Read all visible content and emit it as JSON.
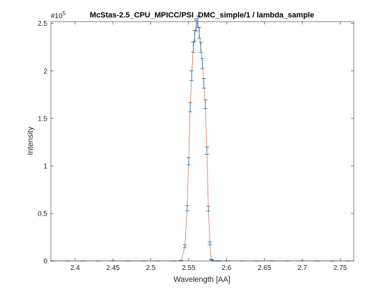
{
  "chart_data": {
    "type": "line",
    "title": "McStas-2.5_CPU_MPICC/PSI_DMC_simple/1 / lambda_sample",
    "xlabel": "Wavelength [AA]",
    "ylabel": "Intensity",
    "y_exponent_base": "#10",
    "y_exponent_power": "5",
    "xlim": [
      2.368,
      2.768
    ],
    "ylim": [
      0,
      252000
    ],
    "x_tick_values": [
      2.4,
      2.45,
      2.5,
      2.55,
      2.6,
      2.65,
      2.7,
      2.75
    ],
    "x_tick_labels": [
      "2.4",
      "2.45",
      "2.5",
      "2.55",
      "2.6",
      "2.65",
      "2.7",
      "2.75"
    ],
    "y_tick_values": [
      0,
      50000,
      100000,
      150000,
      200000,
      250000
    ],
    "y_tick_labels": [
      "0",
      "0.5",
      "1",
      "1.5",
      "2",
      "2.5"
    ],
    "grid": false,
    "colors": {
      "errorbar": "#2f7bb8",
      "line": "#e0734a",
      "axis": "#262626"
    },
    "series": [
      {
        "x": [
          2.37,
          2.39,
          2.41,
          2.43,
          2.45,
          2.47,
          2.49,
          2.51,
          2.53,
          2.54,
          2.545,
          2.548,
          2.55,
          2.552,
          2.554,
          2.556,
          2.558,
          2.56,
          2.562,
          2.564,
          2.566,
          2.568,
          2.57,
          2.572,
          2.574,
          2.576,
          2.578,
          2.58,
          2.582,
          2.584,
          2.586,
          2.588,
          2.59,
          2.592,
          2.6,
          2.62,
          2.64,
          2.66,
          2.68,
          2.7,
          2.72,
          2.74,
          2.76
        ],
        "values": [
          0,
          0,
          0,
          0,
          0,
          0,
          0,
          0,
          0,
          300,
          15500,
          55500,
          105000,
          162000,
          195000,
          225000,
          237000,
          248000,
          252000,
          240000,
          225000,
          208000,
          187000,
          165000,
          116000,
          55000,
          18500,
          1500,
          200,
          0,
          0,
          0,
          0,
          0,
          0,
          0,
          0,
          0,
          0,
          0,
          0,
          0,
          0
        ],
        "errors": [
          0,
          0,
          0,
          0,
          0,
          0,
          0,
          0,
          0,
          300,
          1500,
          2800,
          3800,
          4800,
          5200,
          5500,
          5700,
          5800,
          5900,
          5700,
          5500,
          5300,
          5000,
          4700,
          3900,
          2700,
          1500,
          400,
          100,
          0,
          0,
          0,
          0,
          0,
          0,
          0,
          0,
          0,
          0,
          0,
          0,
          0,
          0
        ]
      }
    ]
  }
}
